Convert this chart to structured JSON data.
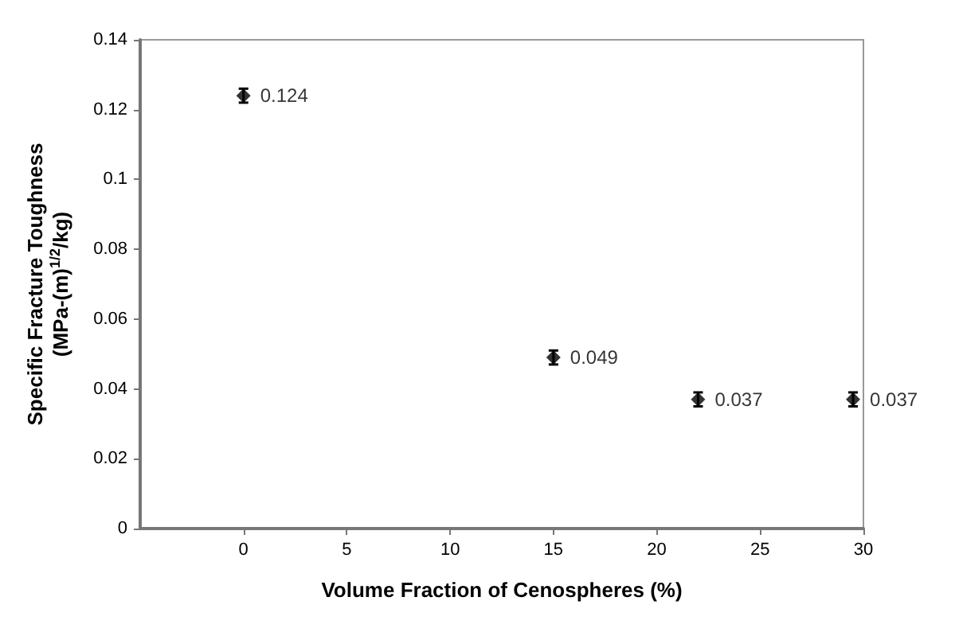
{
  "chart_data": {
    "type": "scatter",
    "xlabel": "Volume Fraction of Cenospheres (%)",
    "ylabel": "Specific Fracture Toughness\n(MPa-(m)$^{1/2}$/kg)",
    "x": [
      0,
      15,
      22,
      29.5
    ],
    "series": [
      {
        "color": "#000000",
        "values": [
          0.124,
          0.049,
          0.037,
          0.037
        ],
        "errors": [
          0.002,
          0.002,
          0.002,
          0.002
        ]
      }
    ],
    "xlim": [
      -5,
      30
    ],
    "xticks": [
      0,
      5,
      10,
      15,
      20,
      25,
      30
    ],
    "ylim": [
      0,
      0.14
    ],
    "yticks": [
      0,
      0.02,
      0.04,
      0.06,
      0.08,
      0.1,
      0.12,
      0.14
    ],
    "data_labels": true,
    "marker": "diamond",
    "grid": false
  }
}
